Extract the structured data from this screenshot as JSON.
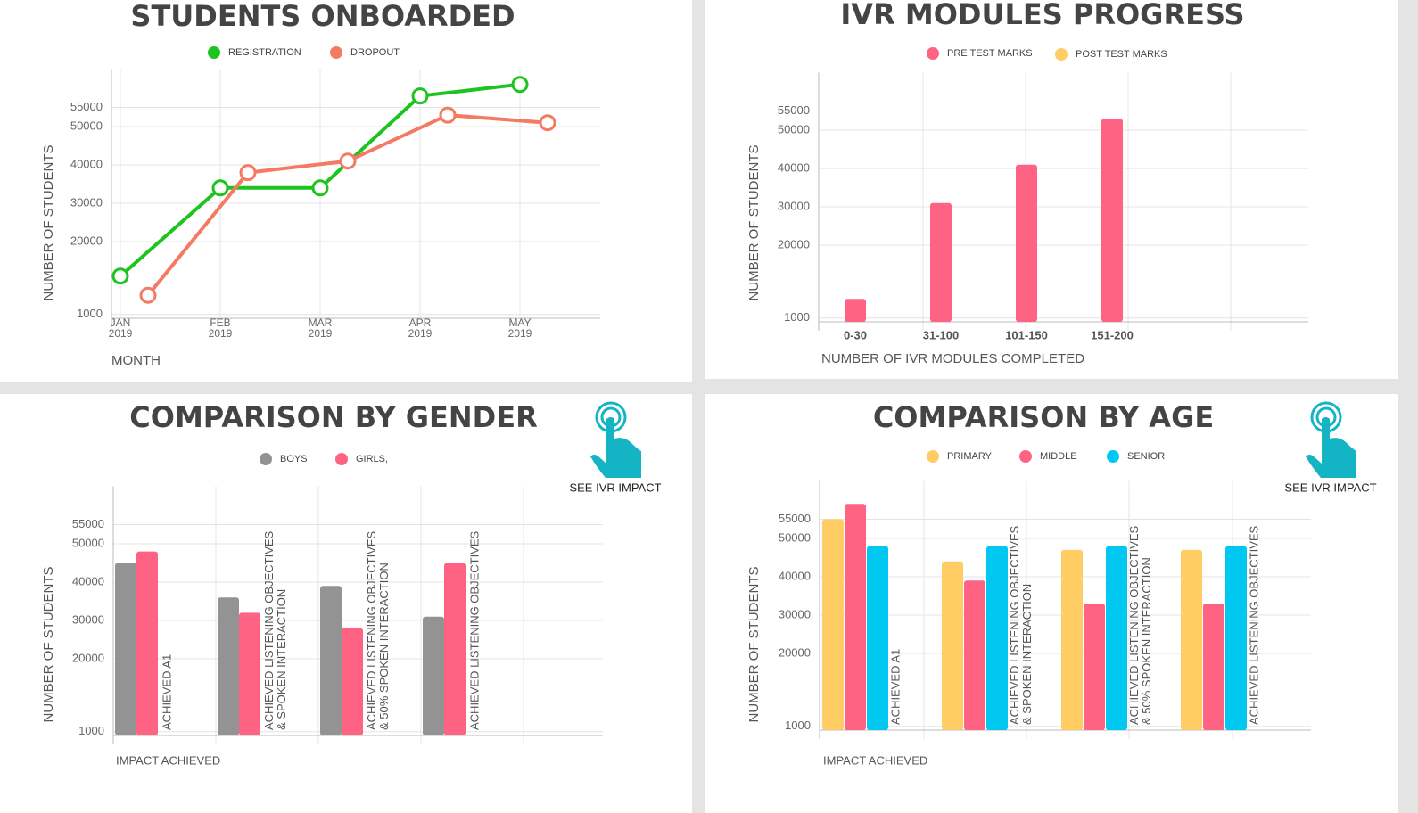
{
  "chart_data": [
    {
      "type": "line",
      "title": "STUDENTS ONBOARDED",
      "x_label": "MONTH",
      "y_label": "NUMBER OF STUDENTS",
      "categories": [
        "JAN 2019",
        "FEB 2019",
        "MAR 2019",
        "APR 2019",
        "MAY 2019"
      ],
      "series": [
        {
          "name": "REGISTRATION",
          "color": "#1dc41d",
          "values": [
            11000,
            34000,
            34000,
            58000,
            61000
          ]
        },
        {
          "name": "DROPOUT",
          "color": "#f47a64",
          "values": [
            6000,
            38000,
            41000,
            53000,
            51000
          ]
        }
      ],
      "ylim": [
        0,
        65000
      ],
      "yticks": [
        1000,
        20000,
        30000,
        40000,
        50000,
        55000
      ],
      "grid": true
    },
    {
      "type": "bar",
      "title": "IVR MODULES PROGRESS",
      "x_label": "NUMBER OF IVR MODULES COMPLETED",
      "y_label": "NUMBER OF STUDENTS",
      "categories": [
        "0-30",
        "31-100",
        "101-150",
        "151-200"
      ],
      "series": [
        {
          "name": "PRE TEST MARKS",
          "color": "#ff6384",
          "values": [
            6000,
            31000,
            41000,
            53000
          ]
        },
        {
          "name": "POST TEST MARKS",
          "color": "#ffcd64",
          "values": [
            null,
            null,
            null,
            null
          ]
        }
      ],
      "ylim": [
        0,
        65000
      ],
      "yticks": [
        1000,
        20000,
        30000,
        40000,
        50000,
        55000
      ],
      "grid": true
    },
    {
      "type": "bar",
      "title": "COMPARISON BY GENDER",
      "x_label": "IMPACT ACHIEVED",
      "y_label": "NUMBER OF STUDENTS",
      "categories": [
        "ACHIEVED A1",
        "ACHIEVED LISTENING OBJECTIVES & SPOKEN INTERACTION",
        "ACHIEVED LISTENING OBJECTIVES & 50% SPOKEN INTERACTION",
        "ACHIEVED LISTENING OBJECTIVES"
      ],
      "series": [
        {
          "name": "BOYS",
          "color": "#939393",
          "values": [
            45000,
            36000,
            39000,
            31000
          ]
        },
        {
          "name": "GIRLS,",
          "color": "#ff6384",
          "values": [
            48000,
            32000,
            28000,
            45000
          ]
        }
      ],
      "ylim": [
        0,
        65000
      ],
      "yticks": [
        1000,
        20000,
        30000,
        40000,
        50000,
        55000
      ],
      "grid": true
    },
    {
      "type": "bar",
      "title": "COMPARISON BY AGE",
      "x_label": "IMPACT ACHIEVED",
      "y_label": "NUMBER OF STUDENTS",
      "categories": [
        "ACHIEVED A1",
        "ACHIEVED LISTENING OBJECTIVES & SPOKEN INTERACTION",
        "ACHIEVED LISTENING OBJECTIVES & 50% SPOKEN INTERACTION",
        "ACHIEVED LISTENING OBJECTIVES"
      ],
      "series": [
        {
          "name": "PRIMARY",
          "color": "#ffcd64",
          "values": [
            55000,
            44000,
            47000,
            47000
          ]
        },
        {
          "name": "MIDDLE",
          "color": "#ff6384",
          "values": [
            59000,
            39000,
            33000,
            33000
          ]
        },
        {
          "name": "SENIOR",
          "color": "#00c8f0",
          "values": [
            48000,
            48000,
            48000,
            48000
          ]
        }
      ],
      "ylim": [
        0,
        65000
      ],
      "yticks": [
        1000,
        20000,
        30000,
        40000,
        50000,
        55000
      ],
      "grid": true
    }
  ],
  "buttons": [
    {
      "label": "SEE IVR IMPACT"
    },
    {
      "label": "SEE IVR IMPACT"
    }
  ]
}
